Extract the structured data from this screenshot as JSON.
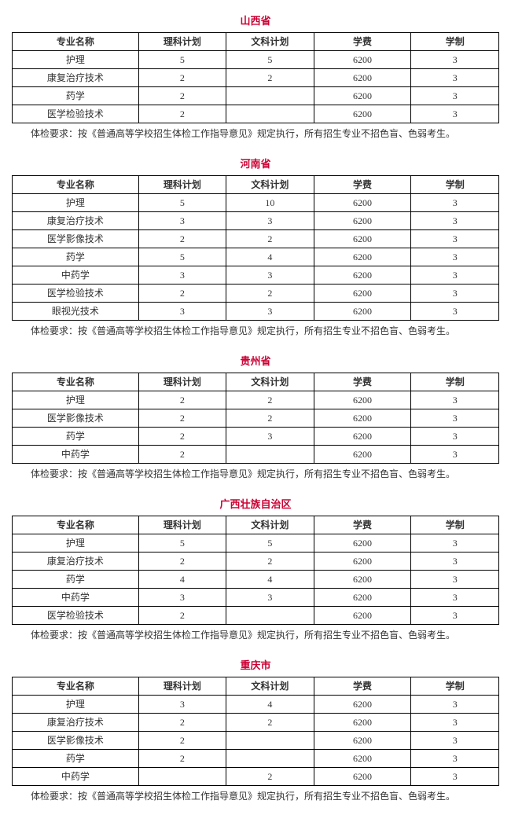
{
  "common": {
    "columns": [
      "专业名称",
      "理科计划",
      "文科计划",
      "学费",
      "学制"
    ],
    "note": "体检要求：按《普通高等学校招生体检工作指导意见》规定执行，所有招生专业不招色盲、色弱考生。",
    "title_color": "#cc0033",
    "border_color": "#000000",
    "background_color": "#ffffff",
    "text_color": "#333333",
    "font_size_body": 12,
    "font_size_title": 13
  },
  "sections": [
    {
      "title": "山西省",
      "rows": [
        [
          "护理",
          "5",
          "5",
          "6200",
          "3"
        ],
        [
          "康复治疗技术",
          "2",
          "2",
          "6200",
          "3"
        ],
        [
          "药学",
          "2",
          "",
          "6200",
          "3"
        ],
        [
          "医学检验技术",
          "2",
          "",
          "6200",
          "3"
        ]
      ]
    },
    {
      "title": "河南省",
      "rows": [
        [
          "护理",
          "5",
          "10",
          "6200",
          "3"
        ],
        [
          "康复治疗技术",
          "3",
          "3",
          "6200",
          "3"
        ],
        [
          "医学影像技术",
          "2",
          "2",
          "6200",
          "3"
        ],
        [
          "药学",
          "5",
          "4",
          "6200",
          "3"
        ],
        [
          "中药学",
          "3",
          "3",
          "6200",
          "3"
        ],
        [
          "医学检验技术",
          "2",
          "2",
          "6200",
          "3"
        ],
        [
          "眼视光技术",
          "3",
          "3",
          "6200",
          "3"
        ]
      ]
    },
    {
      "title": "贵州省",
      "rows": [
        [
          "护理",
          "2",
          "2",
          "6200",
          "3"
        ],
        [
          "医学影像技术",
          "2",
          "2",
          "6200",
          "3"
        ],
        [
          "药学",
          "2",
          "3",
          "6200",
          "3"
        ],
        [
          "中药学",
          "2",
          "",
          "6200",
          "3"
        ]
      ]
    },
    {
      "title": "广西壮族自治区",
      "rows": [
        [
          "护理",
          "5",
          "5",
          "6200",
          "3"
        ],
        [
          "康复治疗技术",
          "2",
          "2",
          "6200",
          "3"
        ],
        [
          "药学",
          "4",
          "4",
          "6200",
          "3"
        ],
        [
          "中药学",
          "3",
          "3",
          "6200",
          "3"
        ],
        [
          "医学检验技术",
          "2",
          "",
          "6200",
          "3"
        ]
      ]
    },
    {
      "title": "重庆市",
      "rows": [
        [
          "护理",
          "3",
          "4",
          "6200",
          "3"
        ],
        [
          "康复治疗技术",
          "2",
          "2",
          "6200",
          "3"
        ],
        [
          "医学影像技术",
          "2",
          "",
          "6200",
          "3"
        ],
        [
          "药学",
          "2",
          "",
          "6200",
          "3"
        ],
        [
          "中药学",
          "",
          "2",
          "6200",
          "3"
        ]
      ]
    }
  ]
}
